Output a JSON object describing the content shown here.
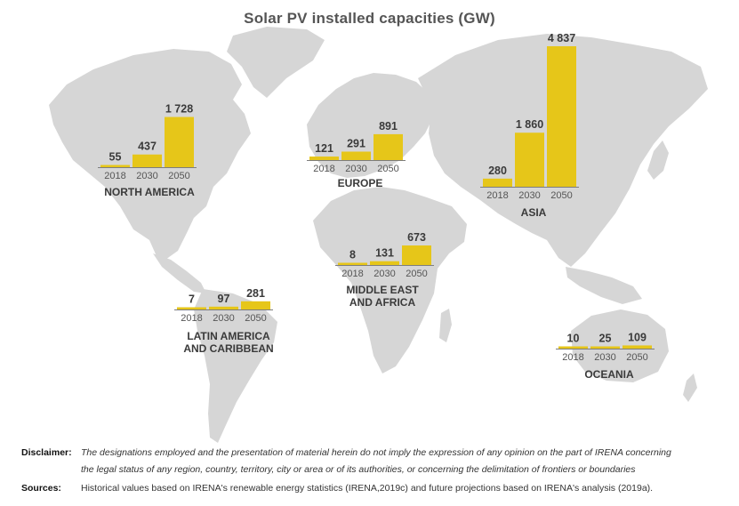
{
  "chart_data": {
    "type": "bar",
    "title": "Solar PV installed capacities (GW)",
    "categories": [
      "2018",
      "2030",
      "2050"
    ],
    "colors": {
      "bar": "#e6c619",
      "map": "#d6d6d6",
      "baseline": "#7d7d7d"
    },
    "regions": [
      {
        "name": "NORTH AMERICA",
        "values": [
          55,
          437,
          1728
        ],
        "value_labels": [
          "55",
          "437",
          "1 728"
        ]
      },
      {
        "name": "EUROPE",
        "values": [
          121,
          291,
          891
        ],
        "value_labels": [
          "121",
          "291",
          "891"
        ]
      },
      {
        "name": "ASIA",
        "values": [
          280,
          1860,
          4837
        ],
        "value_labels": [
          "280",
          "1 860",
          "4 837"
        ]
      },
      {
        "name": "MIDDLE EAST AND AFRICA",
        "values": [
          8,
          131,
          673
        ],
        "value_labels": [
          "8",
          "131",
          "673"
        ]
      },
      {
        "name": "LATIN AMERICA AND CARIBBEAN",
        "values": [
          7,
          97,
          281
        ],
        "value_labels": [
          "7",
          "97",
          "281"
        ]
      },
      {
        "name": "OCEANIA",
        "values": [
          10,
          25,
          109
        ],
        "value_labels": [
          "10",
          "25",
          "109"
        ]
      }
    ]
  },
  "footer": {
    "disclaimer_label": "Disclaimer:",
    "disclaimer_line1": "The designations employed and the presentation of material herein do not imply the expression of any opinion on the part of IRENA concerning",
    "disclaimer_line2": "the legal status of any region, country, territory, city or area or of its authorities, or concerning the delimitation of frontiers or boundaries",
    "sources_label": "Sources:",
    "sources_text": "Historical values based on IRENA's renewable energy statistics (IRENA,2019c) and future projections based on IRENA's analysis (2019a)."
  }
}
